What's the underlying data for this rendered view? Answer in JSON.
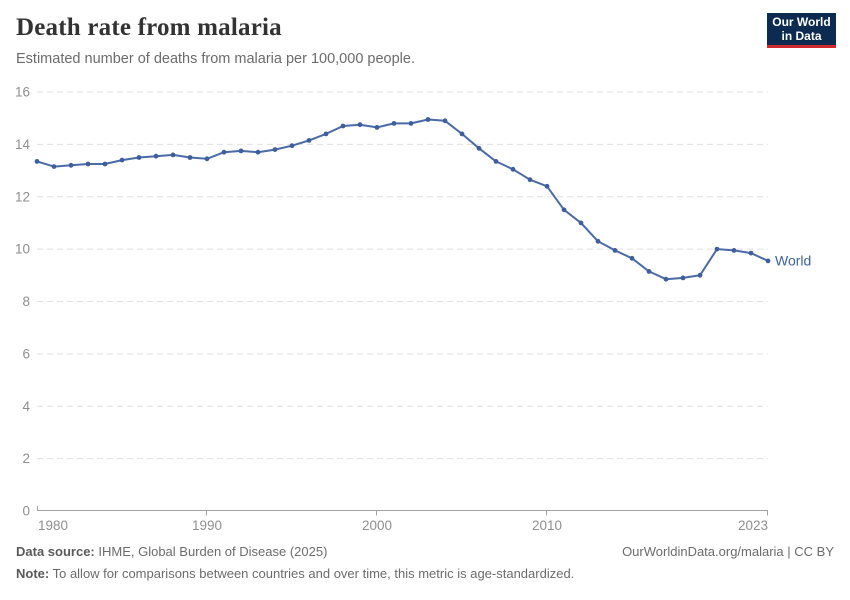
{
  "header": {
    "title": "Death rate from malaria",
    "subtitle": "Estimated number of deaths from malaria per 100,000 people."
  },
  "logo": {
    "line1": "Our World",
    "line2": "in Data",
    "bg_color": "#0d2b51",
    "accent_color": "#cf2a2e"
  },
  "chart_data": {
    "type": "line",
    "title": "Death rate from malaria",
    "xlabel": "",
    "ylabel": "",
    "ylim": [
      0,
      16
    ],
    "yticks": [
      0,
      2,
      4,
      6,
      8,
      10,
      12,
      14,
      16
    ],
    "xticks": [
      1980,
      1990,
      2000,
      2010,
      2023
    ],
    "xtick_labels": [
      "1980",
      "1990",
      "2000",
      "2010",
      "2023"
    ],
    "grid": "horizontal-dashed",
    "legend_position": "end-of-line-label",
    "x": [
      1980,
      1981,
      1982,
      1983,
      1984,
      1985,
      1986,
      1987,
      1988,
      1989,
      1990,
      1991,
      1992,
      1993,
      1994,
      1995,
      1996,
      1997,
      1998,
      1999,
      2000,
      2001,
      2002,
      2003,
      2004,
      2005,
      2006,
      2007,
      2008,
      2009,
      2010,
      2011,
      2012,
      2013,
      2014,
      2015,
      2016,
      2017,
      2018,
      2019,
      2020,
      2021,
      2022,
      2023
    ],
    "series": [
      {
        "name": "World",
        "color": "#4a6aa8",
        "marker_color": "#3e5e9d",
        "values": [
          13.35,
          13.15,
          13.2,
          13.25,
          13.25,
          13.4,
          13.5,
          13.55,
          13.6,
          13.5,
          13.45,
          13.7,
          13.75,
          13.7,
          13.8,
          13.95,
          14.15,
          14.4,
          14.7,
          14.75,
          14.65,
          14.8,
          14.8,
          14.95,
          14.9,
          14.4,
          13.85,
          13.35,
          13.05,
          12.65,
          12.4,
          11.5,
          11.0,
          10.3,
          9.95,
          9.65,
          9.15,
          8.85,
          8.9,
          9.0,
          10.0,
          9.95,
          9.85,
          9.55
        ]
      }
    ]
  },
  "colors": {
    "grid": "#e0e0e0",
    "axis": "#a3a3a3",
    "tick_text": "#8f8f8f",
    "series_label": "#3d649c"
  },
  "footer": {
    "datasource_label": "Data source:",
    "datasource_text": " IHME, Global Burden of Disease (2025)",
    "note_label": "Note:",
    "note_text": " To allow for comparisons between countries and over time, this metric is age-standardized.",
    "right": "OurWorldinData.org/malaria | CC BY"
  }
}
